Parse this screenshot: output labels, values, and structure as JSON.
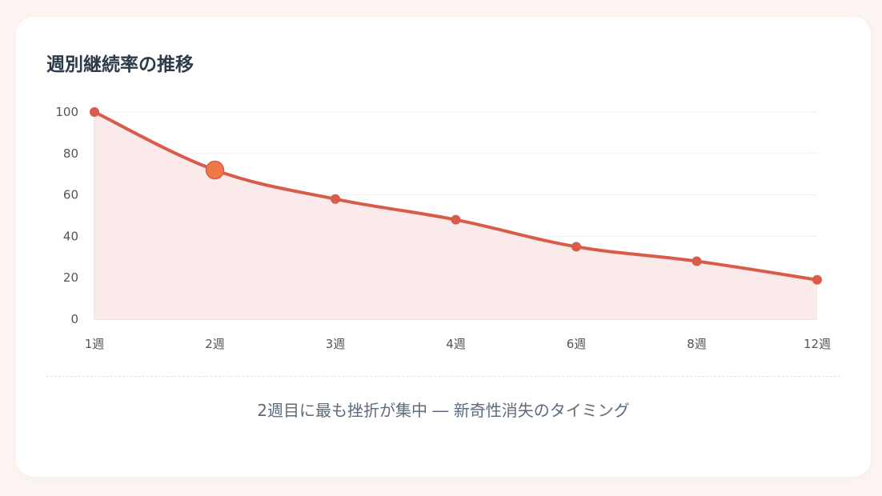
{
  "colors": {
    "line": "#d95c4a",
    "area": "#fbeaea",
    "highlight": "#ef7846",
    "grid": "#efefef",
    "axis": "#e0c8c4"
  },
  "card": {
    "title": "週別継続率の推移",
    "caption": "2週目に最も挫折が集中 ― 新奇性消失のタイミング"
  },
  "chart_data": {
    "type": "area",
    "title": "週別継続率の推移",
    "xlabel": "",
    "ylabel": "",
    "categories": [
      "1週",
      "2週",
      "3週",
      "4週",
      "6週",
      "8週",
      "12週"
    ],
    "values": [
      100,
      72,
      58,
      48,
      35,
      28,
      19
    ],
    "highlight_index": 1,
    "ylim": [
      0,
      100
    ],
    "yticks": [
      "0",
      "20",
      "40",
      "60",
      "80",
      "100"
    ],
    "grid": true,
    "legend": "none"
  }
}
